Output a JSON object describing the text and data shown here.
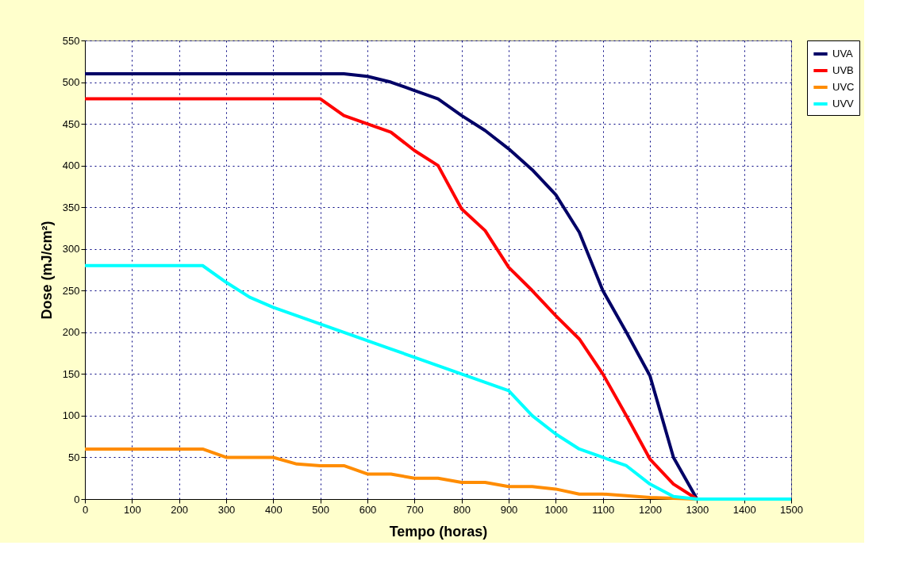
{
  "chart_data": {
    "type": "line",
    "xlabel": "Tempo (horas)",
    "ylabel": "Dose (mJ/cm²)",
    "x": [
      0,
      50,
      100,
      150,
      200,
      250,
      300,
      350,
      400,
      450,
      500,
      550,
      600,
      650,
      700,
      750,
      800,
      850,
      900,
      950,
      1000,
      1050,
      1100,
      1150,
      1200,
      1250,
      1300,
      1350,
      1400,
      1450,
      1500
    ],
    "series": [
      {
        "name": "UVA",
        "color": "#000066",
        "values": [
          510,
          510,
          510,
          510,
          510,
          510,
          510,
          510,
          510,
          510,
          510,
          510,
          507,
          500,
          490,
          480,
          460,
          442,
          420,
          395,
          365,
          320,
          250,
          200,
          148,
          50,
          0,
          null,
          null,
          null,
          null
        ]
      },
      {
        "name": "UVB",
        "color": "#ff0000",
        "values": [
          480,
          480,
          480,
          480,
          480,
          480,
          480,
          480,
          480,
          480,
          480,
          460,
          450,
          440,
          418,
          400,
          348,
          322,
          278,
          250,
          220,
          192,
          150,
          100,
          48,
          18,
          0,
          null,
          null,
          null,
          null
        ]
      },
      {
        "name": "UVC",
        "color": "#ff8c00",
        "values": [
          60,
          60,
          60,
          60,
          60,
          60,
          50,
          50,
          50,
          42,
          40,
          40,
          30,
          30,
          25,
          25,
          20,
          20,
          15,
          15,
          12,
          6,
          6,
          4,
          2,
          1,
          0,
          null,
          null,
          null,
          null
        ]
      },
      {
        "name": "UVV",
        "color": "#00ffff",
        "values": [
          280,
          280,
          280,
          280,
          280,
          280,
          260,
          242,
          230,
          220,
          210,
          200,
          190,
          180,
          170,
          160,
          150,
          140,
          130,
          100,
          78,
          60,
          50,
          40,
          18,
          3,
          0,
          0,
          0,
          0,
          0
        ]
      }
    ],
    "xlim": [
      0,
      1500
    ],
    "xticks": [
      0,
      100,
      200,
      300,
      400,
      500,
      600,
      700,
      800,
      900,
      1000,
      1100,
      1200,
      1300,
      1400,
      1500
    ],
    "ylim": [
      0,
      550
    ],
    "yticks": [
      0,
      50,
      100,
      150,
      200,
      250,
      300,
      350,
      400,
      450,
      500,
      550
    ],
    "grid": true,
    "legend": "right",
    "marker": "none",
    "line_style": "solid"
  }
}
